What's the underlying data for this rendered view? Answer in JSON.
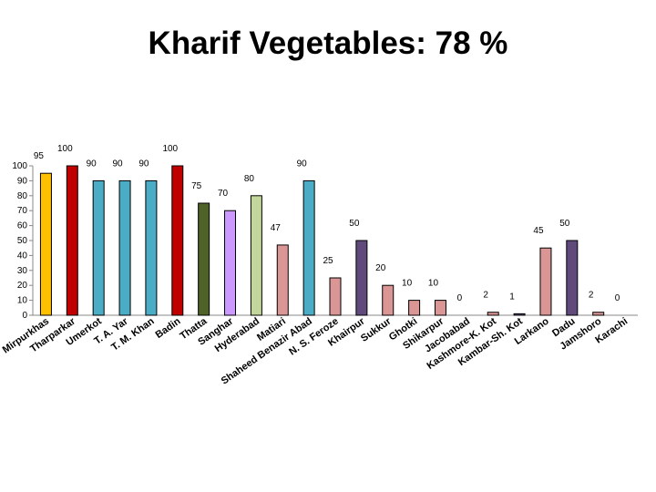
{
  "chart_data": {
    "type": "bar",
    "title": "Kharif Vegetables: 78 %",
    "categories": [
      "Mirpurkhas",
      "Tharparkar",
      "Umerkot",
      "T. A. Yar",
      "T. M. Khan",
      "Badin",
      "Thatta",
      "Sanghar",
      "Hyderabad",
      "Matiari",
      "Shaheed Benazir Abad",
      "N. S. Feroze",
      "Khairpur",
      "Sukkur",
      "Ghotki",
      "Shikarpur",
      "Jacobabad",
      "Kashmore-K. Kot",
      "Kambar-Sh. Kot",
      "Larkano",
      "Dadu",
      "Jamshoro",
      "Karachi"
    ],
    "values": [
      95,
      100,
      90,
      90,
      90,
      100,
      75,
      70,
      80,
      47,
      90,
      25,
      50,
      20,
      10,
      10,
      0,
      2,
      1,
      45,
      50,
      2,
      0
    ],
    "colors": [
      "#ffc000",
      "#c00000",
      "#4bacc6",
      "#4bacc6",
      "#4bacc6",
      "#c00000",
      "#4f6228",
      "#cc99ff",
      "#c3d69b",
      "#d99694",
      "#4bacc6",
      "#d99694",
      "#604a7b",
      "#d99694",
      "#d99694",
      "#d99694",
      "#d99694",
      "#d99694",
      "#604a7b",
      "#d99694",
      "#604a7b",
      "#d99694",
      "#d99694"
    ],
    "ylim": [
      0,
      100
    ],
    "yticks": [
      0,
      10,
      20,
      30,
      40,
      50,
      60,
      70,
      80,
      90,
      100
    ],
    "grid": false,
    "legend": "none"
  }
}
